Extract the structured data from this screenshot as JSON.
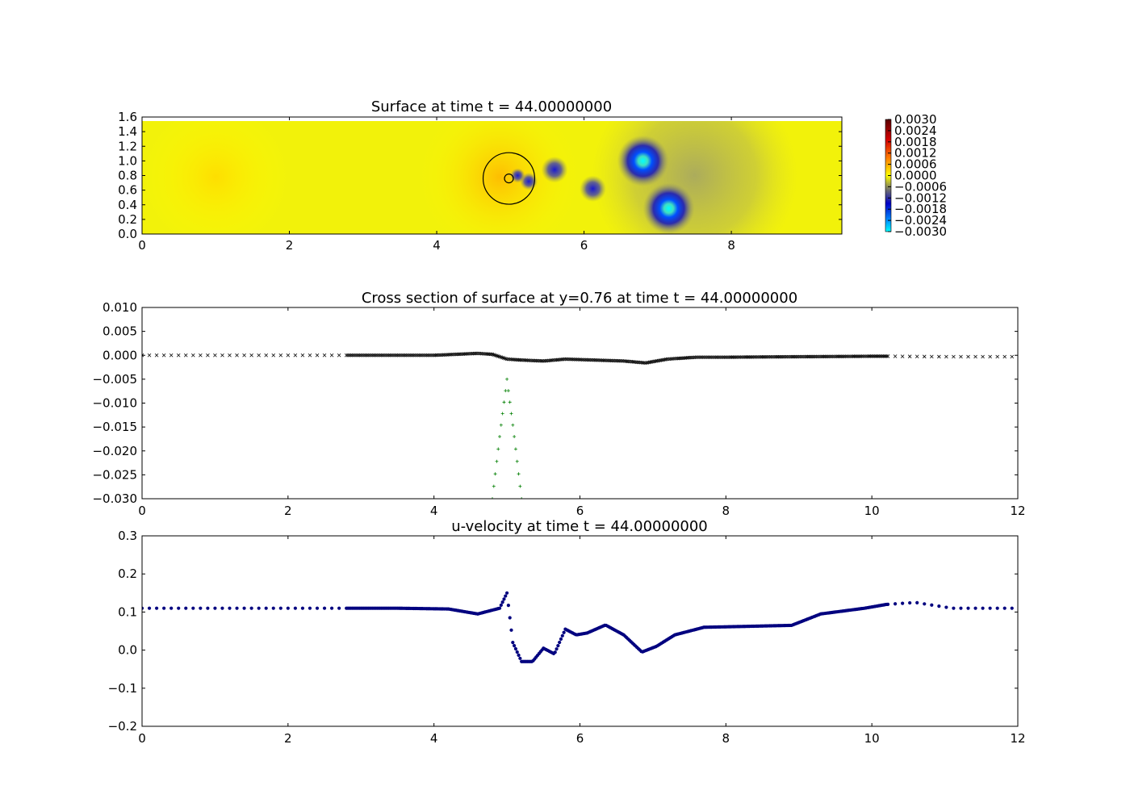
{
  "chart_data": [
    {
      "type": "heatmap",
      "title": "Surface at time t =    44.00000000",
      "xlim": [
        0,
        9.5
      ],
      "ylim": [
        0,
        1.6
      ],
      "xticks": [
        "0",
        "2",
        "4",
        "6",
        "8"
      ],
      "yticks": [
        "0.0",
        "0.2",
        "0.4",
        "0.6",
        "0.8",
        "1.0",
        "1.2",
        "1.4",
        "1.6"
      ],
      "colorbar": {
        "ticks": [
          "0.0030",
          "0.0024",
          "0.0018",
          "0.0012",
          "0.0006",
          "0.0000",
          "−0.0006",
          "−0.0012",
          "−0.0018",
          "−0.0024",
          "−0.0030"
        ],
        "range": [
          -0.003,
          0.003
        ]
      },
      "background_color": "#f2f20a",
      "blobs": [
        {
          "x": 4.85,
          "y": 0.78,
          "r": 1.1,
          "value": 0.0004
        },
        {
          "x": 1.0,
          "y": 0.78,
          "r": 1.0,
          "value": 0.0002
        },
        {
          "x": 6.8,
          "y": 1.0,
          "r": 0.35,
          "value": -0.003
        },
        {
          "x": 7.15,
          "y": 0.35,
          "r": 0.35,
          "value": -0.003
        },
        {
          "x": 5.6,
          "y": 0.88,
          "r": 0.18,
          "value": -0.0015
        },
        {
          "x": 6.12,
          "y": 0.62,
          "r": 0.18,
          "value": -0.0015
        },
        {
          "x": 5.25,
          "y": 0.72,
          "r": 0.12,
          "value": -0.0012
        },
        {
          "x": 5.1,
          "y": 0.8,
          "r": 0.1,
          "value": -0.0012
        },
        {
          "x": 7.5,
          "y": 0.8,
          "r": 1.4,
          "value": -0.0005
        }
      ],
      "markers": [
        {
          "shape": "circle",
          "x": 4.98,
          "y": 0.76,
          "r": 0.35
        },
        {
          "shape": "circle",
          "x": 4.98,
          "y": 0.76,
          "r": 0.06
        }
      ]
    },
    {
      "type": "scatter",
      "title": "Cross section of surface at y=0.76 at time t =    44.00000000",
      "xlim": [
        0,
        12
      ],
      "ylim": [
        -0.03,
        0.01
      ],
      "xticks": [
        "0",
        "2",
        "4",
        "6",
        "8",
        "10",
        "12"
      ],
      "yticks": [
        "0.010",
        "0.005",
        "0.000",
        "−0.005",
        "−0.010",
        "−0.015",
        "−0.020",
        "−0.025",
        "−0.030"
      ],
      "series": [
        {
          "marker": "x",
          "color": "#000000",
          "x": [
            0,
            2,
            2.8,
            3.5,
            4.0,
            4.3,
            4.6,
            4.8,
            5.0,
            5.2,
            5.5,
            5.8,
            6.2,
            6.6,
            6.9,
            7.2,
            7.6,
            8.0,
            9.0,
            10.0,
            10.2,
            11,
            12
          ],
          "y": [
            0.0,
            0.0,
            0.0,
            0.0,
            0.0,
            0.0002,
            0.0004,
            0.0002,
            -0.0008,
            -0.001,
            -0.0012,
            -0.0008,
            -0.001,
            -0.0012,
            -0.0016,
            -0.0008,
            -0.0004,
            -0.0004,
            -0.0003,
            -0.0002,
            -0.0002,
            -0.0003,
            -0.0003
          ]
        },
        {
          "marker": "+",
          "color": "#007f00",
          "x": [
            4.8,
            4.9,
            5.0,
            5.1,
            5.2
          ],
          "y": [
            -0.03,
            -0.017,
            -0.005,
            -0.017,
            -0.03
          ]
        }
      ]
    },
    {
      "type": "scatter",
      "title": "u-velocity at time t =    44.00000000",
      "xlim": [
        0,
        12
      ],
      "ylim": [
        -0.2,
        0.3
      ],
      "xticks": [
        "0",
        "2",
        "4",
        "6",
        "8",
        "10",
        "12"
      ],
      "yticks": [
        "0.3",
        "0.2",
        "0.1",
        "0.0",
        "−0.1",
        "−0.2"
      ],
      "series": [
        {
          "marker": "o",
          "color": "#00007f",
          "x": [
            0,
            2.8,
            3.5,
            4.2,
            4.6,
            4.9,
            5.0,
            5.08,
            5.2,
            5.35,
            5.5,
            5.65,
            5.8,
            5.95,
            6.1,
            6.35,
            6.6,
            6.85,
            7.05,
            7.3,
            7.7,
            8.2,
            8.9,
            9.3,
            9.9,
            10.2,
            10.6,
            11.1,
            12
          ],
          "y": [
            0.11,
            0.11,
            0.11,
            0.108,
            0.095,
            0.11,
            0.15,
            0.02,
            -0.03,
            -0.03,
            0.005,
            -0.01,
            0.055,
            0.04,
            0.045,
            0.066,
            0.04,
            -0.005,
            0.01,
            0.04,
            0.06,
            0.062,
            0.065,
            0.095,
            0.11,
            0.12,
            0.125,
            0.11,
            0.11
          ]
        }
      ]
    }
  ]
}
